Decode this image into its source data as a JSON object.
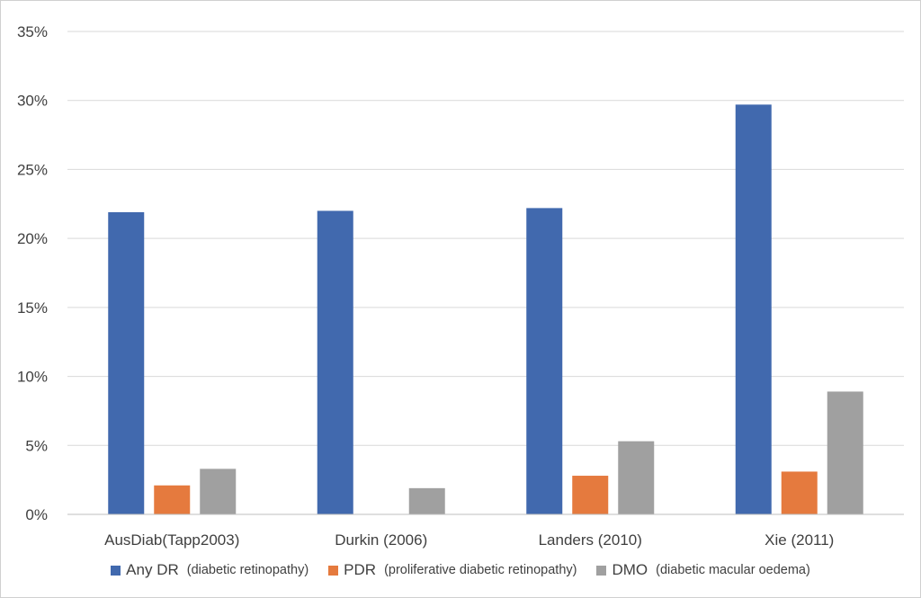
{
  "chart_data": {
    "type": "bar",
    "title": "",
    "xlabel": "",
    "ylabel": "",
    "categories": [
      "AusDiab(Tapp2003)",
      "Durkin (2006)",
      "Landers (2010)",
      "Xie (2011)"
    ],
    "ylim": [
      0,
      35
    ],
    "yticks": [
      "0%",
      "5%",
      "10%",
      "15%",
      "20%",
      "25%",
      "30%",
      "35%"
    ],
    "yunit": "%",
    "grid": true,
    "legend_position": "bottom",
    "series": [
      {
        "name": "Any DR",
        "description": "(diabetic retinopathy)",
        "color": "#4169ae",
        "values": [
          21.9,
          22.0,
          22.2,
          29.7
        ]
      },
      {
        "name": "PDR",
        "description": "(proliferative diabetic retinopathy)",
        "color": "#e57a3e",
        "values": [
          2.1,
          null,
          2.8,
          3.1
        ]
      },
      {
        "name": "DMO",
        "description": "(diabetic macular oedema)",
        "color": "#a0a0a0",
        "values": [
          3.3,
          1.9,
          5.3,
          8.9
        ]
      }
    ]
  }
}
